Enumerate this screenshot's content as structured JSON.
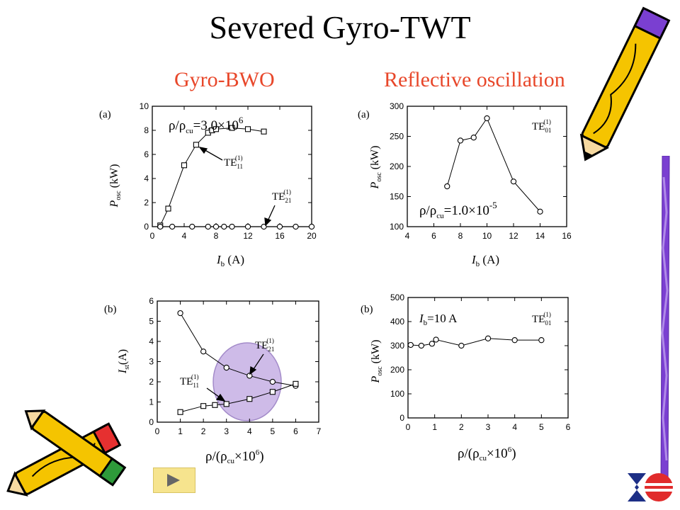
{
  "title": "Severed Gyro-TWT",
  "section_left": "Gyro-BWO",
  "section_right": "Reflective  oscillation",
  "colors": {
    "section_title": "#e8472a",
    "ellipse_fill": "#c9b4e6",
    "ellipse_stroke": "#9a7fc4"
  },
  "icons": {
    "next": "play-triangle-icon",
    "logo": "institution-logo-icon",
    "pencils": "pencil-clipart-icon"
  },
  "chart_data": [
    {
      "id": "bwo-a",
      "type": "scatter",
      "panel_label": "(a)",
      "xlabel": "I_b (A)",
      "ylabel": "P_osc (kW)",
      "xlim": [
        0,
        20
      ],
      "ylim": [
        0,
        10
      ],
      "xticks": [
        0,
        4,
        8,
        12,
        16,
        20
      ],
      "yticks": [
        0,
        2,
        4,
        6,
        8,
        10
      ],
      "series": [
        {
          "name": "TE11(1)",
          "marker": "square",
          "line": true,
          "x": [
            1,
            2,
            4,
            5.5,
            7,
            7.5,
            8,
            10,
            12,
            14
          ],
          "y": [
            0.1,
            1.5,
            5.1,
            6.8,
            7.8,
            8.0,
            8.1,
            8.2,
            8.1,
            7.9
          ]
        },
        {
          "name": "TE21(1)",
          "marker": "circle",
          "line": false,
          "x": [
            1,
            2.5,
            5,
            7,
            8,
            9,
            10,
            12,
            14,
            16,
            18,
            20
          ],
          "y": [
            0,
            0,
            0,
            0,
            0,
            0,
            0,
            0,
            0,
            0,
            0,
            0
          ]
        }
      ],
      "annotations": [
        "ρ/ρcu=3.0×10⁶",
        "TE11(1)",
        "TE21(1)"
      ]
    },
    {
      "id": "reflect-a",
      "type": "line",
      "panel_label": "(a)",
      "xlabel": "I_b (A)",
      "ylabel": "P_osc (kW)",
      "xlim": [
        4,
        16
      ],
      "ylim": [
        100,
        300
      ],
      "xticks": [
        4,
        6,
        8,
        10,
        12,
        14,
        16
      ],
      "yticks": [
        100,
        150,
        200,
        250,
        300
      ],
      "series": [
        {
          "name": "TE01(1)",
          "marker": "circle",
          "line": true,
          "x": [
            7,
            8,
            9,
            10,
            12,
            14
          ],
          "y": [
            167,
            243,
            248,
            280,
            175,
            125
          ]
        }
      ],
      "annotations": [
        "TE01(1)",
        "ρ/ρcu=1.0×10⁻⁵"
      ]
    },
    {
      "id": "bwo-b",
      "type": "line",
      "panel_label": "(b)",
      "xlabel": "ρ/(ρcu×10⁶)",
      "ylabel": "I_st (A)",
      "xlim": [
        0,
        7
      ],
      "ylim": [
        0,
        6
      ],
      "xticks": [
        0,
        1,
        2,
        3,
        4,
        5,
        6,
        7
      ],
      "yticks": [
        0,
        1,
        2,
        3,
        4,
        5,
        6
      ],
      "series": [
        {
          "name": "TE21(1)",
          "marker": "circle",
          "line": true,
          "x": [
            1,
            2,
            3,
            4,
            5,
            6
          ],
          "y": [
            5.4,
            3.5,
            2.7,
            2.3,
            2.0,
            1.8
          ]
        },
        {
          "name": "TE11(1)",
          "marker": "square",
          "line": true,
          "x": [
            1,
            2,
            2.5,
            3,
            4,
            5,
            6
          ],
          "y": [
            0.5,
            0.8,
            0.85,
            0.9,
            1.15,
            1.5,
            1.9
          ]
        }
      ],
      "annotations": [
        "TE21(1)",
        "TE11(1)"
      ]
    },
    {
      "id": "reflect-b",
      "type": "line",
      "panel_label": "(b)",
      "xlabel": "ρ/(ρcu×10⁶)",
      "ylabel": "P_osc (kW)",
      "xlim": [
        0,
        6
      ],
      "ylim": [
        0,
        500
      ],
      "xticks": [
        0,
        1,
        2,
        3,
        4,
        5,
        6
      ],
      "yticks": [
        0,
        100,
        200,
        300,
        400,
        500
      ],
      "series": [
        {
          "name": "TE01(1)",
          "marker": "circle",
          "line": true,
          "x": [
            0.1,
            0.5,
            0.9,
            1.05,
            2,
            3,
            4,
            5
          ],
          "y": [
            303,
            300,
            308,
            325,
            300,
            330,
            323,
            323
          ]
        }
      ],
      "annotations": [
        "I_b=10 A",
        "TE01(1)"
      ]
    }
  ]
}
